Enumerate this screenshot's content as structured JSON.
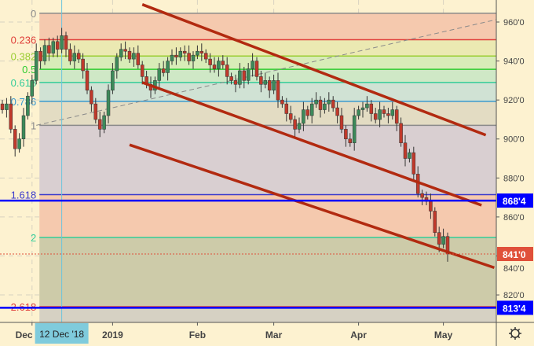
{
  "chart_data": {
    "type": "candlestick",
    "title": "",
    "ylim": [
      809,
      966
    ],
    "y_ticks": [
      "960'0",
      "940'0",
      "920'0",
      "900'0",
      "880'0",
      "860'0",
      "840'0",
      "820'0"
    ],
    "y_tick_values": [
      960,
      940,
      920,
      900,
      880,
      860,
      840,
      820
    ],
    "x_labels": [
      {
        "label": "Dec",
        "index": 7
      },
      {
        "label": "2019",
        "index": 26
      },
      {
        "label": "Feb",
        "index": 46
      },
      {
        "label": "Mar",
        "index": 64
      },
      {
        "label": "Apr",
        "index": 84
      },
      {
        "label": "May",
        "index": 104
      }
    ],
    "crosshair": {
      "label": "12 Dec '18",
      "index": 14
    },
    "closes": [
      915,
      918,
      905,
      895,
      900,
      912,
      922,
      930,
      945,
      940,
      948,
      944,
      950,
      946,
      953,
      946,
      940,
      944,
      941,
      935,
      925,
      918,
      910,
      905,
      912,
      925,
      935,
      942,
      946,
      945,
      941,
      944,
      938,
      932,
      928,
      925,
      930,
      936,
      934,
      940,
      943,
      942,
      945,
      944,
      940,
      943,
      945,
      944,
      941,
      938,
      936,
      940,
      938,
      932,
      930,
      928,
      935,
      930,
      936,
      940,
      932,
      928,
      930,
      925,
      930,
      920,
      918,
      913,
      910,
      905,
      908,
      915,
      912,
      918,
      920,
      915,
      918,
      920,
      916,
      912,
      905,
      900,
      898,
      912,
      915,
      916,
      918,
      913,
      910,
      915,
      913,
      912,
      915,
      908,
      898,
      890,
      893,
      882,
      872,
      870,
      868,
      863,
      852,
      846,
      850,
      841
    ],
    "fib": {
      "start_index": 8,
      "high": 964.5,
      "low": 907,
      "levels": [
        {
          "ratio": 0,
          "label": "0",
          "color": "#8a8a8a",
          "fill": "#f5c9ae"
        },
        {
          "ratio": 0.236,
          "label": "0.236",
          "color": "#e0403a",
          "fill": "#ebe9b2"
        },
        {
          "ratio": 0.382,
          "label": "0.382",
          "color": "#9acd32",
          "fill": "#d8ecb8"
        },
        {
          "ratio": 0.5,
          "label": "0.5",
          "color": "#2fcc2f",
          "fill": "#cfe8c6"
        },
        {
          "ratio": 0.618,
          "label": "0.618",
          "color": "#33cc99",
          "fill": "#d0e2d4"
        },
        {
          "ratio": 0.786,
          "label": "0.786",
          "color": "#3a9ad0",
          "fill": "#e3dcc3"
        },
        {
          "ratio": 1,
          "label": "1",
          "color": "#8a8a8a",
          "fill": "#d9cfd1"
        },
        {
          "ratio": 1.618,
          "label": "1.618",
          "color": "#3a3acc",
          "fill": "#f5c9ae"
        },
        {
          "ratio": 2,
          "label": "2",
          "color": "#33cc99",
          "fill": "#cdcba9"
        },
        {
          "ratio": 2.618,
          "label": "2.618",
          "color": "#e0403a",
          "fill": "#d6d1c3"
        }
      ]
    },
    "trend_lines": [
      {
        "from": [
          33,
          969
        ],
        "to": [
          114,
          902
        ]
      },
      {
        "from": [
          33,
          929
        ],
        "to": [
          113,
          866
        ]
      },
      {
        "from": [
          30,
          897
        ],
        "to": [
          116,
          834
        ]
      }
    ],
    "guide_line": {
      "from": [
        8,
        907
      ],
      "to": [
        125,
        965.5
      ]
    },
    "horizontal_lines": [
      {
        "value": 868.4,
        "label": "868'4",
        "color": "#0000ff"
      },
      {
        "value": 813.4,
        "label": "813'4",
        "color": "#0000ff"
      }
    ],
    "last_price": {
      "value": 841,
      "label": "841'0",
      "color": "#e0503a"
    },
    "colors": {
      "up": "#3c8a5a",
      "down": "#c0392b",
      "trend": "#b22a10",
      "bg": "#fdf2d0"
    }
  }
}
